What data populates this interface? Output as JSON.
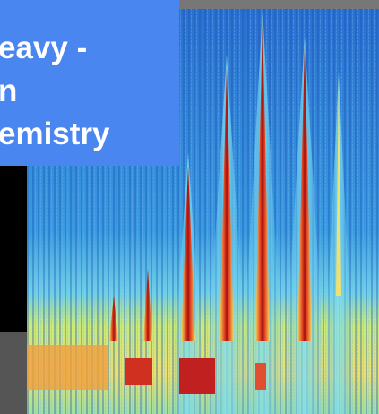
{
  "caption": {
    "lines": [
      "eavy -",
      "n",
      "emistry"
    ]
  }
}
